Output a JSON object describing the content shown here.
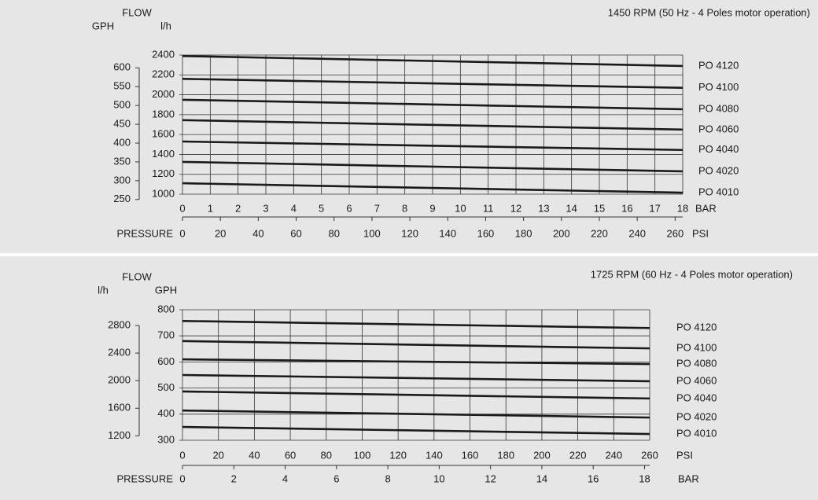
{
  "chart_data": [
    {
      "type": "line",
      "title": "1450 RPM (50 Hz - 4 Poles motor operation)",
      "ylabel": "FLOW",
      "y_unit": "l/h",
      "y2_unit": "GPH",
      "xlabel": "PRESSURE",
      "x_unit": "BAR",
      "x2_unit": "PSI",
      "x": [
        0,
        18
      ],
      "xlim": [
        0,
        18
      ],
      "xticks": [
        0,
        1,
        2,
        3,
        4,
        5,
        6,
        7,
        8,
        9,
        10,
        11,
        12,
        13,
        14,
        15,
        16,
        17,
        18
      ],
      "x2lim": [
        0,
        264
      ],
      "x2ticks": [
        0,
        20,
        40,
        60,
        80,
        100,
        120,
        140,
        160,
        180,
        200,
        220,
        240,
        260
      ],
      "ylim": [
        1000,
        2400
      ],
      "yticks": [
        1000,
        1200,
        1400,
        1600,
        1800,
        2000,
        2200,
        2400
      ],
      "y2lim": [
        264.2,
        634.0
      ],
      "y2ticks": [
        250,
        300,
        350,
        400,
        450,
        500,
        550,
        600
      ],
      "grid": true,
      "series": [
        {
          "name": "PO 4120",
          "color": "#1a1a1a",
          "values": [
            2390,
            2290
          ]
        },
        {
          "name": "PO 4100",
          "color": "#1a1a1a",
          "values": [
            2160,
            2070
          ]
        },
        {
          "name": "PO 4080",
          "color": "#1a1a1a",
          "values": [
            1950,
            1855
          ]
        },
        {
          "name": "PO 4060",
          "color": "#1a1a1a",
          "values": [
            1745,
            1650
          ]
        },
        {
          "name": "PO 4040",
          "color": "#1a1a1a",
          "values": [
            1530,
            1445
          ]
        },
        {
          "name": "PO 4020",
          "color": "#1a1a1a",
          "values": [
            1325,
            1230
          ]
        },
        {
          "name": "PO 4010",
          "color": "#1a1a1a",
          "values": [
            1110,
            1015
          ]
        }
      ]
    },
    {
      "type": "line",
      "title": "1725 RPM (60 Hz - 4 Poles motor operation)",
      "ylabel": "FLOW",
      "y_unit": "GPH",
      "y2_unit": "l/h",
      "xlabel": "PRESSURE",
      "x_unit": "PSI",
      "x2_unit": "BAR",
      "x": [
        0,
        260
      ],
      "xlim": [
        0,
        260
      ],
      "xticks": [
        0,
        20,
        40,
        60,
        80,
        100,
        120,
        140,
        160,
        180,
        200,
        220,
        240,
        260
      ],
      "x2lim": [
        0,
        18.2
      ],
      "x2ticks": [
        0,
        2,
        4,
        6,
        8,
        10,
        12,
        14,
        16,
        18
      ],
      "ylim": [
        300,
        800
      ],
      "yticks": [
        300,
        400,
        500,
        600,
        700,
        800
      ],
      "y2lim": [
        1135.6,
        3028.3
      ],
      "y2ticks": [
        1200,
        1600,
        2000,
        2400,
        2800
      ],
      "grid": true,
      "series": [
        {
          "name": "PO 4120",
          "color": "#1a1a1a",
          "values": [
            757,
            730
          ]
        },
        {
          "name": "PO 4100",
          "color": "#1a1a1a",
          "values": [
            680,
            652
          ]
        },
        {
          "name": "PO 4080",
          "color": "#1a1a1a",
          "values": [
            610,
            592
          ]
        },
        {
          "name": "PO 4060",
          "color": "#1a1a1a",
          "values": [
            550,
            526
          ]
        },
        {
          "name": "PO 4040",
          "color": "#1a1a1a",
          "values": [
            487,
            460
          ]
        },
        {
          "name": "PO 4020",
          "color": "#1a1a1a",
          "values": [
            414,
            387
          ]
        },
        {
          "name": "PO 4010",
          "color": "#1a1a1a",
          "values": [
            351,
            324
          ]
        }
      ]
    }
  ]
}
